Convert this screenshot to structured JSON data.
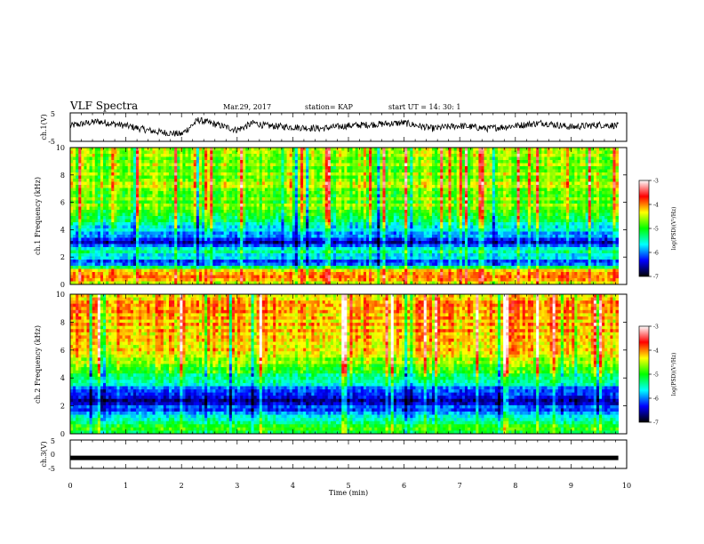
{
  "header": {
    "title": "VLF Spectra",
    "date": "Mar.29, 2017",
    "station": "station= KAP",
    "start": "start UT =   14: 30: 1"
  },
  "colors": {
    "scale": [
      "#000000",
      "#0000ff",
      "#00ffff",
      "#00ff00",
      "#ffff00",
      "#ff0000",
      "#ffffff"
    ]
  },
  "chart_data": [
    {
      "type": "line",
      "name": "ch1-waveform",
      "ylabel": "ch.1(V)",
      "ylim": [
        -5,
        5
      ],
      "yticks": [
        "5",
        "-5"
      ],
      "xlim": [
        0,
        10
      ],
      "duration_min": 9.85,
      "note_values": "noisy voltage trace near 0 V with excursions between about -3 and +3 V",
      "x": [
        0,
        0.5,
        1.0,
        1.5,
        2.0,
        2.3,
        2.5,
        3.0,
        3.3,
        3.5,
        4.0,
        4.5,
        5.0,
        5.5,
        6.0,
        6.5,
        7.0,
        7.5,
        8.0,
        8.5,
        9.0,
        9.5,
        9.85
      ],
      "y": [
        0.5,
        2,
        0.5,
        -1.5,
        -2.5,
        2.5,
        1.5,
        -1,
        1.5,
        0.5,
        0,
        -0.5,
        0.5,
        1,
        1.5,
        -0.5,
        0.5,
        -0.5,
        0.5,
        1.5,
        0,
        0.8,
        0.5
      ]
    },
    {
      "type": "heatmap",
      "name": "ch1-spectrogram",
      "ylabel": "ch.1 Frequency (kHz)",
      "ylim": [
        0,
        10
      ],
      "yticks": [
        "0",
        "2",
        "4",
        "6",
        "8",
        "10"
      ],
      "xlim": [
        0,
        10
      ],
      "colorbar": {
        "label": "log(PSD)(V²/Hz)",
        "range": [
          -7,
          -3
        ],
        "ticks": [
          "-3",
          "-4",
          "-5",
          "-6",
          "-7"
        ]
      },
      "profile": {
        "freq_khz": [
          0,
          0.5,
          1.0,
          1.5,
          2.0,
          2.5,
          3.0,
          3.5,
          4.0,
          4.5,
          5.0,
          5.5,
          6.0,
          7.0,
          8.0,
          9.0,
          10.0
        ],
        "log_psd": [
          -4.5,
          -3.8,
          -4.2,
          -6.2,
          -5.8,
          -5.5,
          -6.6,
          -6.0,
          -5.6,
          -5.3,
          -5.0,
          -4.7,
          -4.9,
          -4.6,
          -4.7,
          -4.6,
          -4.7
        ]
      }
    },
    {
      "type": "heatmap",
      "name": "ch2-spectrogram",
      "ylabel": "ch.2 Frequency (kHz)",
      "ylim": [
        0,
        10
      ],
      "yticks": [
        "0",
        "2",
        "4",
        "6",
        "8",
        "10"
      ],
      "xlim": [
        0,
        10
      ],
      "colorbar": {
        "label": "log(PSD)(V²/Hz)",
        "range": [
          -7,
          -3
        ],
        "ticks": [
          "-3",
          "-4",
          "-5",
          "-6",
          "-7"
        ]
      },
      "profile": {
        "freq_khz": [
          0,
          0.5,
          1.0,
          1.5,
          2.0,
          2.5,
          3.0,
          3.5,
          4.0,
          4.5,
          5.0,
          5.5,
          6.0,
          7.0,
          8.0,
          9.0,
          10.0
        ],
        "log_psd": [
          -5.0,
          -4.8,
          -5.4,
          -6.0,
          -6.3,
          -6.7,
          -6.0,
          -5.7,
          -5.3,
          -4.9,
          -4.7,
          -4.5,
          -4.3,
          -4.2,
          -4.1,
          -4.0,
          -4.2
        ]
      }
    },
    {
      "type": "line",
      "name": "ch3-waveform",
      "ylabel": "ch.3(V)",
      "ylim": [
        -5,
        5
      ],
      "yticks": [
        "5",
        "0",
        "-5"
      ],
      "xlim": [
        0,
        10
      ],
      "xlabel": "Time (min)",
      "xticks": [
        "0",
        "1",
        "2",
        "3",
        "4",
        "5",
        "6",
        "7",
        "8",
        "9",
        "10"
      ],
      "duration_min": 9.85,
      "x": [
        0,
        9.85
      ],
      "y": [
        -1.3,
        -1.3
      ]
    }
  ]
}
